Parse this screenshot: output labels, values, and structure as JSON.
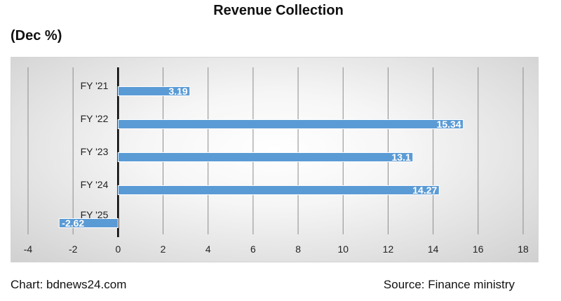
{
  "title": "Revenue Collection",
  "subtitle": "(Dec %)",
  "footer": {
    "credit": "Chart: bdnews24.com",
    "source": "Source: Finance ministry"
  },
  "colors": {
    "bar": "#5b9bd5",
    "bar_outline": "#ffffff",
    "axis": "#000000",
    "grid": "#8c8c8c"
  },
  "chart_data": {
    "type": "bar",
    "orientation": "horizontal",
    "title": "Revenue Collection",
    "subtitle": "(Dec %)",
    "xlabel": "",
    "ylabel": "",
    "categories": [
      "FY '21",
      "FY '22",
      "FY '23",
      "FY '24",
      "FY '25"
    ],
    "values": [
      3.19,
      15.34,
      13.1,
      14.27,
      -2.62
    ],
    "data_labels": [
      "3.19",
      "15.34",
      "13.1",
      "14.27",
      "-2.62"
    ],
    "xlim": [
      -4,
      18
    ],
    "x_ticks": [
      -4,
      -2,
      0,
      2,
      4,
      6,
      8,
      10,
      12,
      14,
      16,
      18
    ],
    "grid": "vertical",
    "legend": "none"
  }
}
